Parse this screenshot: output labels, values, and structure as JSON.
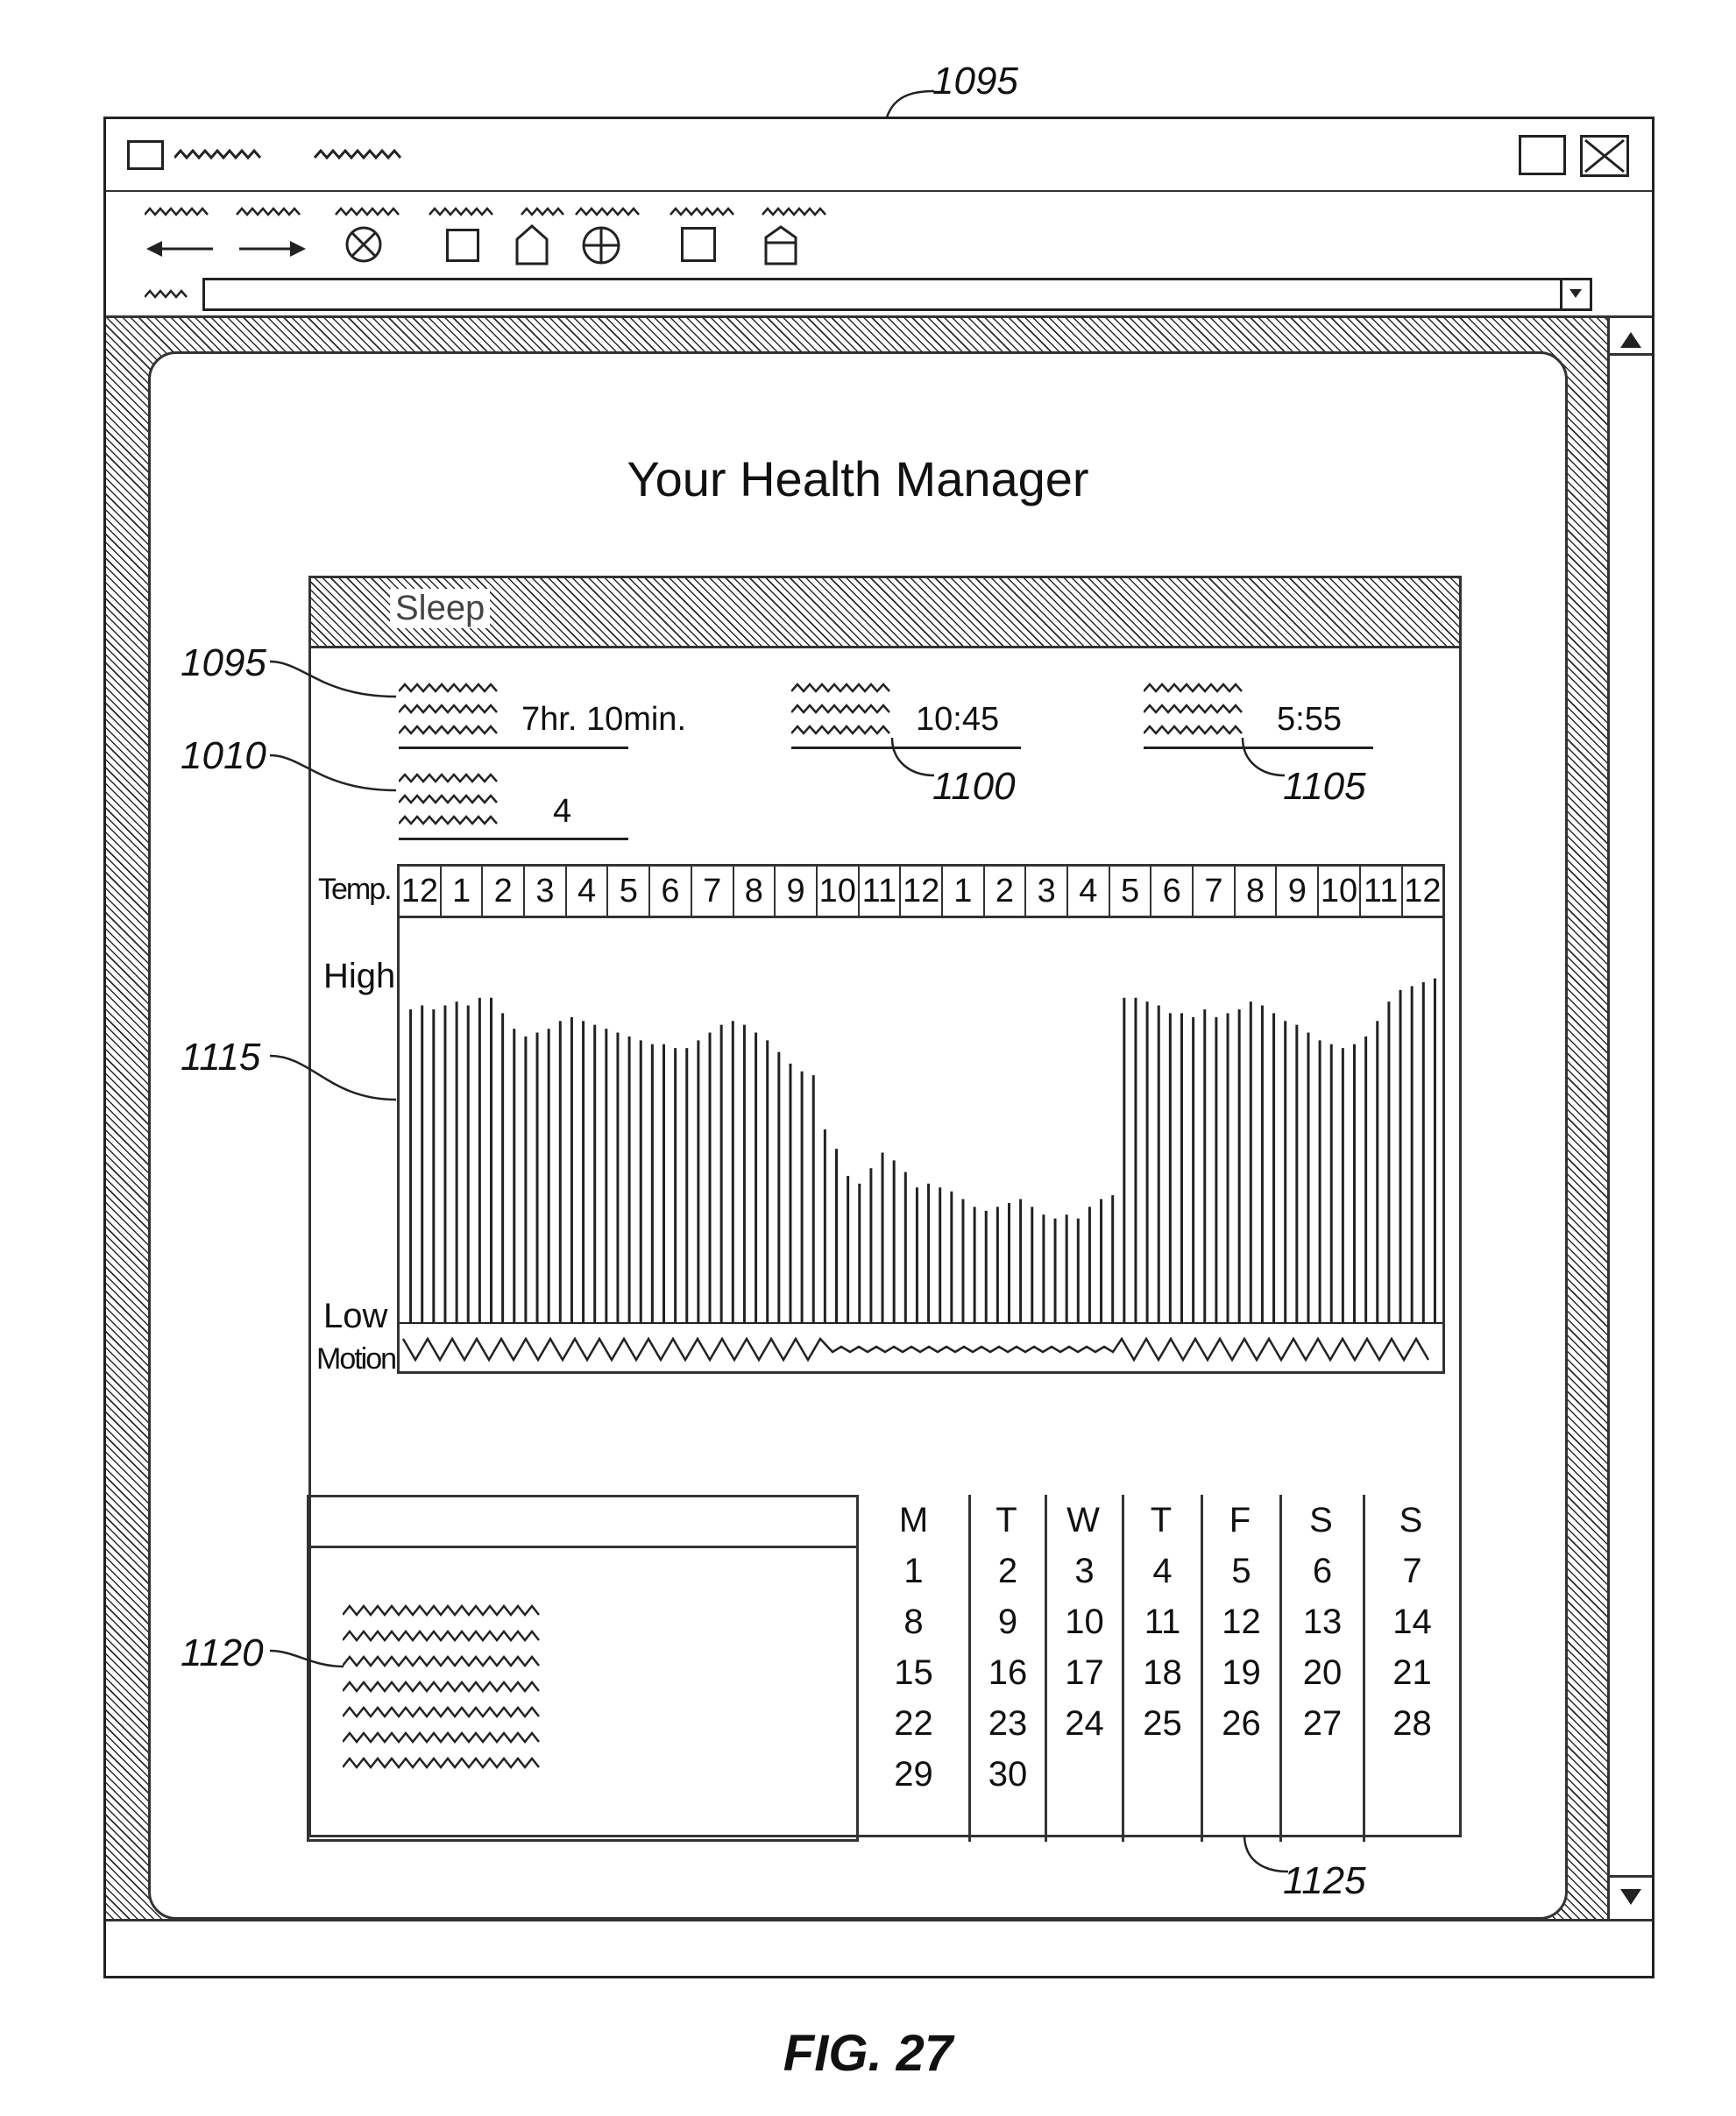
{
  "figure_label": "FIG. 27",
  "ref_numerals": {
    "window": "1095",
    "total_sleep": "1095",
    "awakenings": "1010",
    "bedtime": "1100",
    "waketime": "1105",
    "chart": "1115",
    "notes": "1120",
    "calendar": "1125"
  },
  "page": {
    "title": "Your Health Manager"
  },
  "sleep": {
    "title": "Sleep",
    "total_sleep": "7hr. 10min.",
    "awakenings": "4",
    "bedtime": "10:45",
    "waketime": "5:55"
  },
  "chart": {
    "row_label": "Temp.",
    "high_label": "High",
    "low_label": "Low",
    "motion_label": "Motion",
    "hours": [
      "12",
      "1",
      "2",
      "3",
      "4",
      "5",
      "6",
      "7",
      "8",
      "9",
      "10",
      "11",
      "12",
      "1",
      "2",
      "3",
      "4",
      "5",
      "6",
      "7",
      "8",
      "9",
      "10",
      "11",
      "12"
    ]
  },
  "chart_data": {
    "type": "bar",
    "title": "Sleep",
    "xlabel": "",
    "ylabel": "Temp.",
    "x_ticks": [
      "12",
      "1",
      "2",
      "3",
      "4",
      "5",
      "6",
      "7",
      "8",
      "9",
      "10",
      "11",
      "12",
      "1",
      "2",
      "3",
      "4",
      "5",
      "6",
      "7",
      "8",
      "9",
      "10",
      "11",
      "12"
    ],
    "y_labels": [
      "High",
      "Low"
    ],
    "ylim": [
      0,
      1
    ],
    "series": [
      {
        "values": [
          0.81,
          0.82,
          0.81,
          0.82,
          0.83,
          0.82,
          0.84,
          0.84,
          0.8,
          0.76,
          0.74,
          0.75,
          0.76,
          0.78,
          0.79,
          0.78,
          0.77,
          0.76,
          0.75,
          0.74,
          0.73,
          0.72,
          0.72,
          0.71,
          0.71,
          0.73,
          0.75,
          0.77,
          0.78,
          0.77,
          0.75,
          0.73,
          0.7,
          0.67,
          0.65,
          0.64,
          0.5,
          0.45,
          0.38,
          0.36,
          0.4,
          0.44,
          0.42,
          0.39,
          0.35,
          0.36,
          0.35,
          0.34,
          0.32,
          0.3,
          0.29,
          0.3,
          0.31,
          0.32,
          0.3,
          0.28,
          0.27,
          0.28,
          0.27,
          0.3,
          0.32,
          0.33,
          0.84,
          0.84,
          0.83,
          0.82,
          0.8,
          0.8,
          0.79,
          0.81,
          0.79,
          0.8,
          0.81,
          0.83,
          0.82,
          0.8,
          0.78,
          0.77,
          0.75,
          0.73,
          0.72,
          0.71,
          0.72,
          0.74,
          0.78,
          0.83,
          0.86,
          0.87,
          0.88,
          0.89
        ]
      }
    ]
  },
  "calendar": {
    "headers": [
      "M",
      "T",
      "W",
      "T",
      "F",
      "S",
      "S"
    ],
    "columns": [
      [
        "1",
        "8",
        "15",
        "22",
        "29"
      ],
      [
        "2",
        "9",
        "16",
        "23",
        "30"
      ],
      [
        "3",
        "10",
        "17",
        "24"
      ],
      [
        "4",
        "11",
        "18",
        "25"
      ],
      [
        "5",
        "12",
        "19",
        "26"
      ],
      [
        "6",
        "13",
        "20",
        "27"
      ],
      [
        "7",
        "14",
        "21",
        "28"
      ]
    ]
  },
  "icons": {
    "back": "left-arrow-icon",
    "forward": "right-arrow-icon",
    "stop": "stop-icon",
    "refresh": "square-icon",
    "home": "home-icon",
    "globe": "globe-icon",
    "print": "square-icon",
    "mail": "house-icon"
  }
}
